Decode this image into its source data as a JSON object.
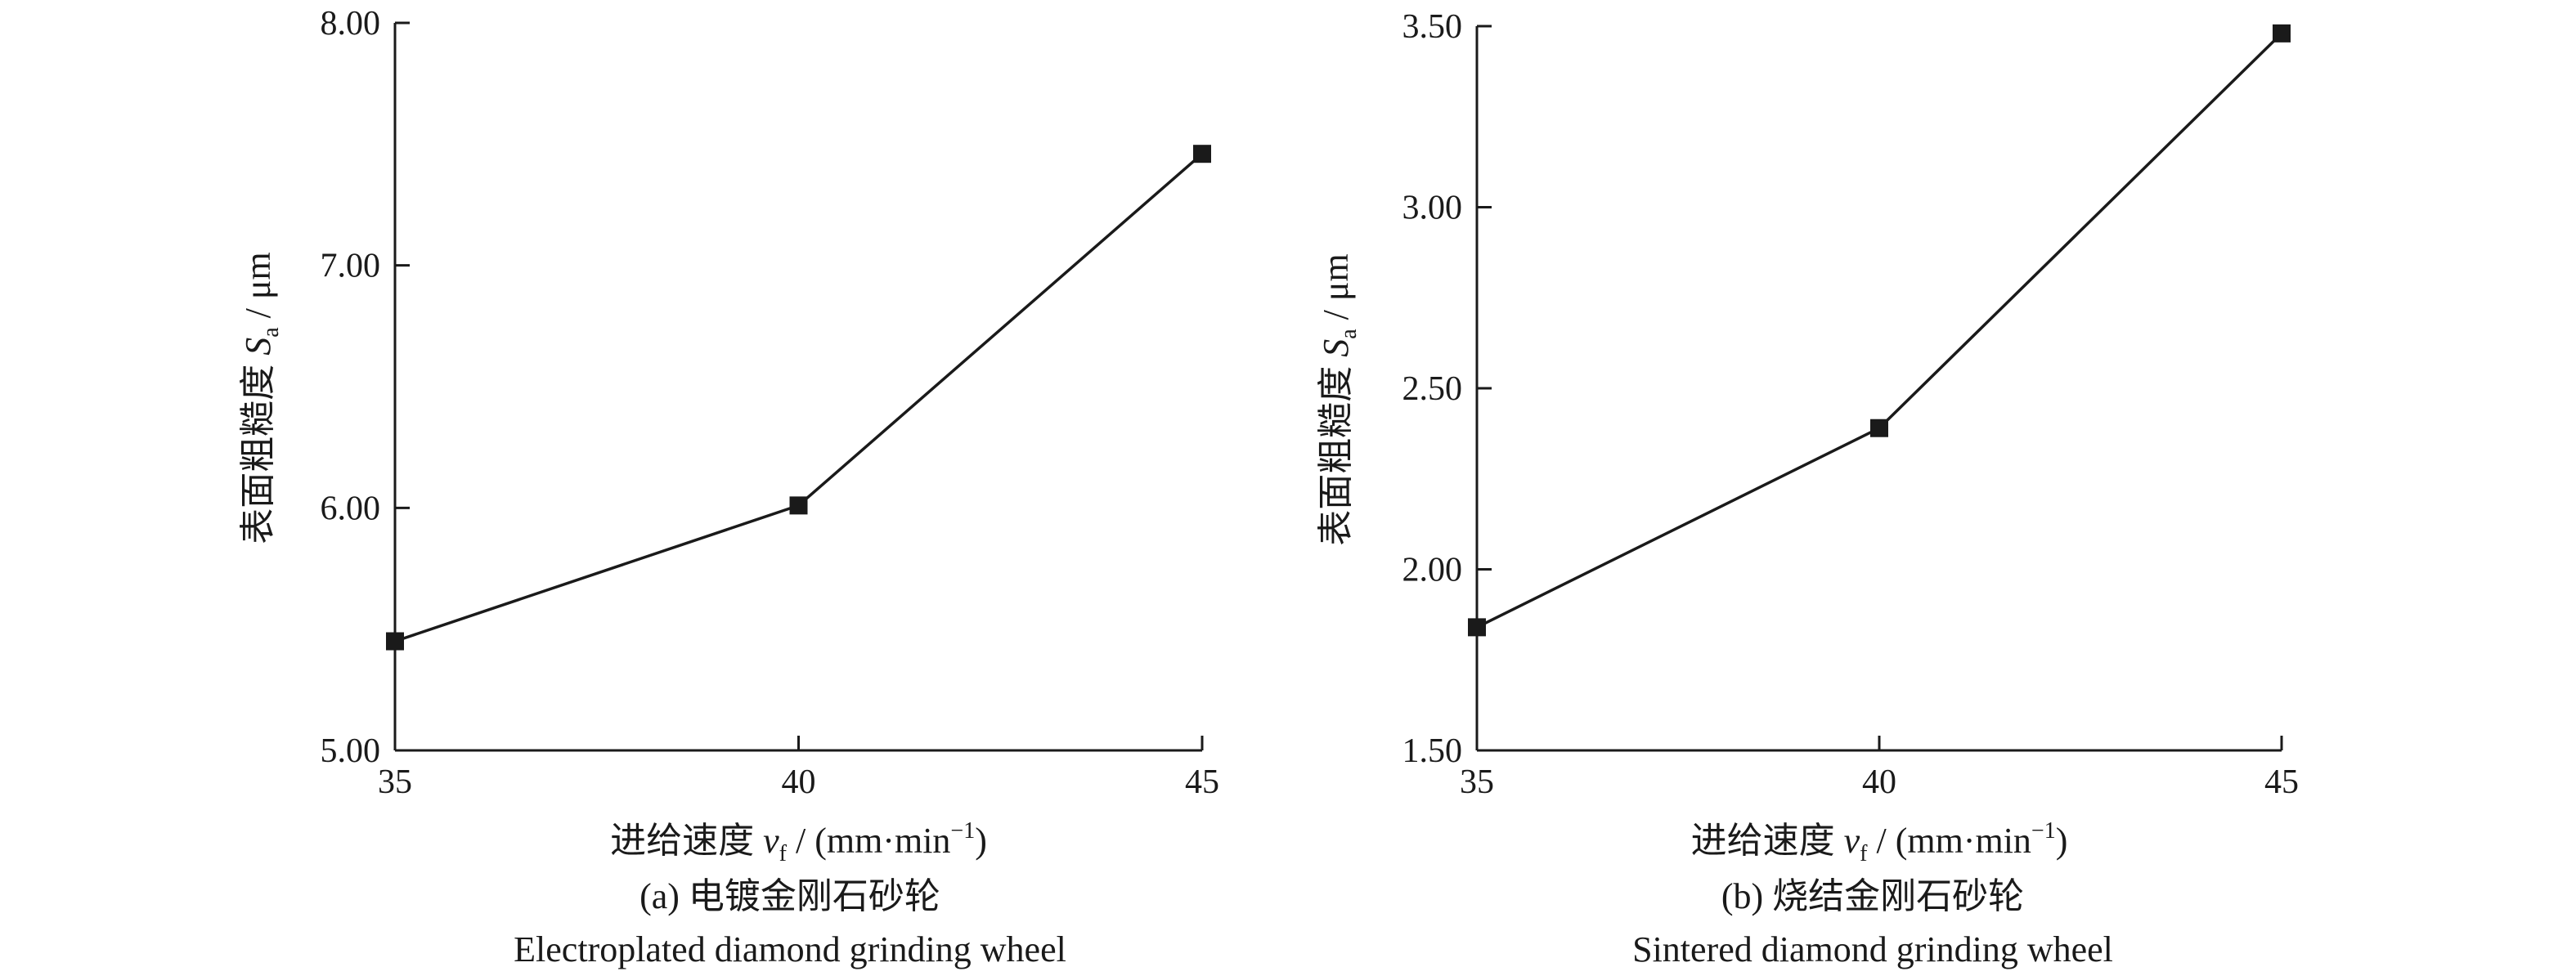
{
  "chart_data": [
    {
      "type": "line",
      "x": [
        35,
        40,
        45
      ],
      "y": [
        5.45,
        6.01,
        7.46
      ],
      "xlim": [
        35,
        45
      ],
      "ylim": [
        5.0,
        8.0
      ],
      "x_ticks": [
        "35",
        "40",
        "45"
      ],
      "y_ticks": [
        "5.00",
        "6.00",
        "7.00",
        "8.00"
      ],
      "y_tick_values": [
        5.0,
        6.0,
        7.0,
        8.0
      ],
      "xlabel": {
        "prefix": "进给速度 ",
        "symbol": "v",
        "sub": "f",
        "unit": " / (mm·min",
        "sup": "−1",
        "close": ")"
      },
      "ylabel": {
        "prefix": "表面粗糙度 ",
        "symbol": "S",
        "sub": "a",
        "unit": " / μm"
      },
      "caption": {
        "line1": "(a) 电镀金刚石砂轮",
        "line2": "Electroplated diamond grinding wheel"
      },
      "grid": false,
      "marker": "square",
      "color": "#1a1a1a"
    },
    {
      "type": "line",
      "x": [
        35,
        40,
        45
      ],
      "y": [
        1.84,
        2.39,
        3.48
      ],
      "xlim": [
        35,
        45
      ],
      "ylim": [
        1.5,
        3.5
      ],
      "x_ticks": [
        "35",
        "40",
        "45"
      ],
      "y_ticks": [
        "1.50",
        "2.00",
        "2.50",
        "3.00",
        "3.50"
      ],
      "y_tick_values": [
        1.5,
        2.0,
        2.5,
        3.0,
        3.5
      ],
      "xlabel": {
        "prefix": "进给速度 ",
        "symbol": "v",
        "sub": "f",
        "unit": " / (mm·min",
        "sup": "−1",
        "close": ")"
      },
      "ylabel": {
        "prefix": "表面粗糙度 ",
        "symbol": "S",
        "sub": "a",
        "unit": " / μm"
      },
      "caption": {
        "line1": "(b) 烧结金刚石砂轮",
        "line2": "Sintered diamond grinding wheel"
      },
      "grid": false,
      "marker": "square",
      "color": "#1a1a1a"
    }
  ]
}
